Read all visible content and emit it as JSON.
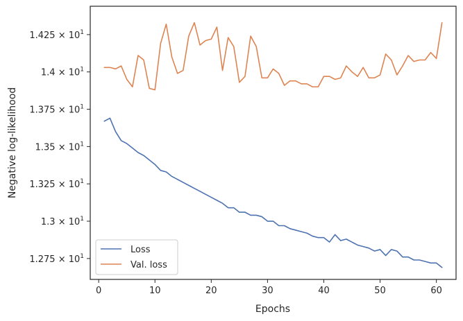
{
  "chart_data": {
    "type": "line",
    "xlabel": "Epochs",
    "ylabel": "Negative log-likelihood",
    "xlim": [
      -1.5,
      63.5
    ],
    "ylim": [
      12.61,
      14.44
    ],
    "xticks": [
      {
        "value": 0,
        "label": "0"
      },
      {
        "value": 10,
        "label": "10"
      },
      {
        "value": 20,
        "label": "20"
      },
      {
        "value": 30,
        "label": "30"
      },
      {
        "value": 40,
        "label": "40"
      },
      {
        "value": 50,
        "label": "50"
      },
      {
        "value": 60,
        "label": "60"
      }
    ],
    "yticks": [
      {
        "value": 12.75,
        "mantissa": "1.275",
        "exp": "1"
      },
      {
        "value": 13.0,
        "mantissa": "1.3",
        "exp": "1"
      },
      {
        "value": 13.25,
        "mantissa": "1.325",
        "exp": "1"
      },
      {
        "value": 13.5,
        "mantissa": "1.35",
        "exp": "1"
      },
      {
        "value": 13.75,
        "mantissa": "1.375",
        "exp": "1"
      },
      {
        "value": 14.0,
        "mantissa": "1.4",
        "exp": "1"
      },
      {
        "value": 14.25,
        "mantissa": "1.425",
        "exp": "1"
      }
    ],
    "grid": false,
    "legend_position": "bottom-left",
    "series": [
      {
        "name": "Loss",
        "color": "#4c72b0",
        "x": [
          1,
          2,
          3,
          4,
          5,
          6,
          7,
          8,
          9,
          10,
          11,
          12,
          13,
          14,
          15,
          16,
          17,
          18,
          19,
          20,
          21,
          22,
          23,
          24,
          25,
          26,
          27,
          28,
          29,
          30,
          31,
          32,
          33,
          34,
          35,
          36,
          37,
          38,
          39,
          40,
          41,
          42,
          43,
          44,
          45,
          46,
          47,
          48,
          49,
          50,
          51,
          52,
          53,
          54,
          55,
          56,
          57,
          58,
          59,
          60,
          61
        ],
        "values": [
          13.67,
          13.69,
          13.6,
          13.54,
          13.52,
          13.49,
          13.46,
          13.44,
          13.41,
          13.38,
          13.34,
          13.33,
          13.3,
          13.28,
          13.26,
          13.24,
          13.22,
          13.2,
          13.18,
          13.16,
          13.14,
          13.12,
          13.09,
          13.09,
          13.06,
          13.06,
          13.04,
          13.04,
          13.03,
          13.0,
          13.0,
          12.97,
          12.97,
          12.95,
          12.94,
          12.93,
          12.92,
          12.9,
          12.89,
          12.89,
          12.86,
          12.91,
          12.87,
          12.88,
          12.86,
          12.84,
          12.83,
          12.82,
          12.8,
          12.81,
          12.77,
          12.81,
          12.8,
          12.76,
          12.76,
          12.74,
          12.74,
          12.73,
          12.72,
          12.72,
          12.69
        ]
      },
      {
        "name": "Val. loss",
        "color": "#dd8452",
        "x": [
          1,
          2,
          3,
          4,
          5,
          6,
          7,
          8,
          9,
          10,
          11,
          12,
          13,
          14,
          15,
          16,
          17,
          18,
          19,
          20,
          21,
          22,
          23,
          24,
          25,
          26,
          27,
          28,
          29,
          30,
          31,
          32,
          33,
          34,
          35,
          36,
          37,
          38,
          39,
          40,
          41,
          42,
          43,
          44,
          45,
          46,
          47,
          48,
          49,
          50,
          51,
          52,
          53,
          54,
          55,
          56,
          57,
          58,
          59,
          60,
          61
        ],
        "values": [
          14.03,
          14.03,
          14.02,
          14.04,
          13.95,
          13.9,
          14.11,
          14.08,
          13.89,
          13.88,
          14.19,
          14.32,
          14.1,
          13.99,
          14.01,
          14.24,
          14.33,
          14.18,
          14.21,
          14.22,
          14.3,
          14.01,
          14.23,
          14.17,
          13.93,
          13.97,
          14.24,
          14.17,
          13.96,
          13.96,
          14.02,
          13.99,
          13.91,
          13.94,
          13.94,
          13.92,
          13.92,
          13.9,
          13.9,
          13.97,
          13.97,
          13.95,
          13.96,
          14.04,
          14.0,
          13.97,
          14.03,
          13.96,
          13.96,
          13.98,
          14.12,
          14.08,
          13.98,
          14.04,
          14.11,
          14.07,
          14.08,
          14.08,
          14.13,
          14.09,
          14.33
        ]
      }
    ]
  }
}
